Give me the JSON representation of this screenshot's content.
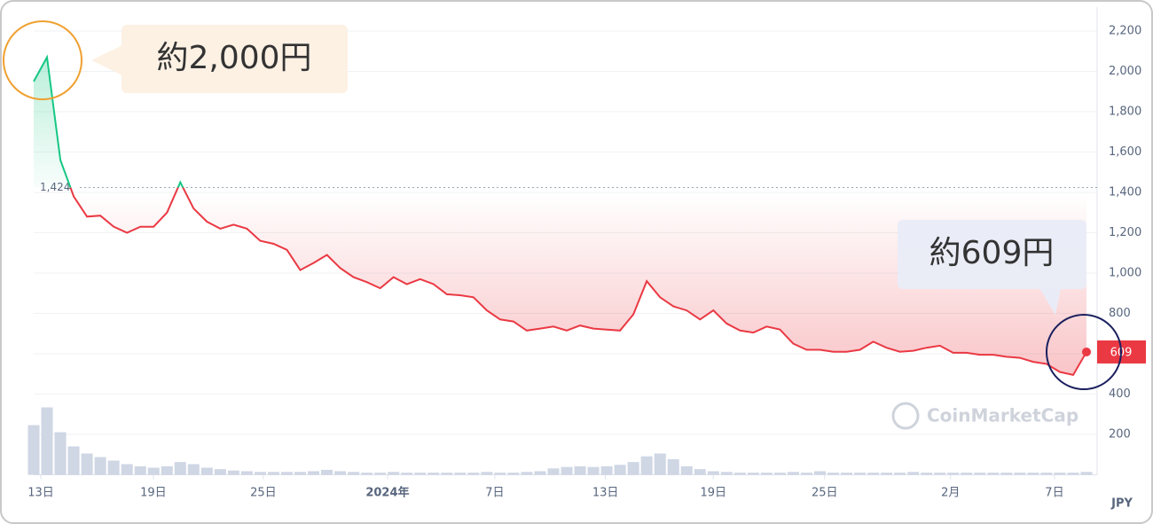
{
  "chart_data": {
    "type": "line",
    "reference": {
      "value": 1424,
      "label": "1,424"
    },
    "series": [
      {
        "name": "price",
        "color_up": "#16c784",
        "color": "#ea3943",
        "values": [
          1950,
          2070,
          1560,
          1380,
          1280,
          1285,
          1230,
          1200,
          1230,
          1230,
          1300,
          1450,
          1320,
          1255,
          1220,
          1240,
          1220,
          1160,
          1145,
          1115,
          1015,
          1050,
          1090,
          1025,
          980,
          955,
          925,
          980,
          945,
          970,
          945,
          895,
          890,
          880,
          815,
          770,
          760,
          715,
          725,
          735,
          715,
          740,
          725,
          720,
          715,
          795,
          960,
          880,
          835,
          815,
          770,
          815,
          750,
          715,
          705,
          735,
          720,
          650,
          620,
          620,
          610,
          610,
          620,
          660,
          630,
          610,
          615,
          630,
          640,
          605,
          605,
          595,
          595,
          585,
          580,
          560,
          550,
          510,
          495,
          609
        ]
      },
      {
        "name": "volume",
        "color": "#cfd6e4",
        "axis": "y2",
        "values": [
          70,
          95,
          60,
          40,
          30,
          25,
          20,
          15,
          12,
          10,
          12,
          18,
          15,
          10,
          8,
          6,
          5,
          4,
          4,
          4,
          4,
          5,
          7,
          5,
          4,
          3,
          3,
          4,
          3,
          3,
          3,
          3,
          3,
          3,
          4,
          3,
          3,
          4,
          5,
          9,
          11,
          12,
          11,
          12,
          14,
          18,
          26,
          30,
          22,
          12,
          8,
          5,
          4,
          3,
          3,
          3,
          3,
          4,
          3,
          5,
          3,
          3,
          3,
          3,
          3,
          3,
          4,
          3,
          3,
          3,
          3,
          3,
          3,
          3,
          3,
          3,
          3,
          3,
          3,
          4
        ]
      }
    ],
    "xlim": [
      0,
      79
    ],
    "xticks": [
      {
        "value": 0.53,
        "label": "13日"
      },
      {
        "value": 8.98,
        "label": "19日"
      },
      {
        "value": 17.23,
        "label": "25日"
      },
      {
        "value": 26.55,
        "label": "2024年"
      },
      {
        "value": 34.6,
        "label": "7日"
      },
      {
        "value": 42.9,
        "label": "13日"
      },
      {
        "value": 51.0,
        "label": "19日"
      },
      {
        "value": 59.35,
        "label": "25日"
      },
      {
        "value": 68.8,
        "label": "2月"
      },
      {
        "value": 76.6,
        "label": "7日"
      }
    ],
    "ylim": [
      0,
      2200
    ],
    "yticks": [
      {
        "value": 200,
        "label": "200"
      },
      {
        "value": 400,
        "label": "400"
      },
      {
        "value": 600,
        "label": "600"
      },
      {
        "value": 800,
        "label": "800"
      },
      {
        "value": 1000,
        "label": "1,000"
      },
      {
        "value": 1200,
        "label": "1,200"
      },
      {
        "value": 1400,
        "label": "1,400"
      },
      {
        "value": 1600,
        "label": "1,600"
      },
      {
        "value": 1800,
        "label": "1,800"
      },
      {
        "value": 2000,
        "label": "2,000"
      },
      {
        "value": 2200,
        "label": "2,200"
      }
    ],
    "y2lim": [
      0,
      100
    ],
    "y_unit": "JPY",
    "last_price": {
      "value": 609,
      "label": "609"
    },
    "watermark": "CoinMarketCap",
    "annotations": [
      "約2,000円",
      "約609円"
    ],
    "grid": true
  }
}
